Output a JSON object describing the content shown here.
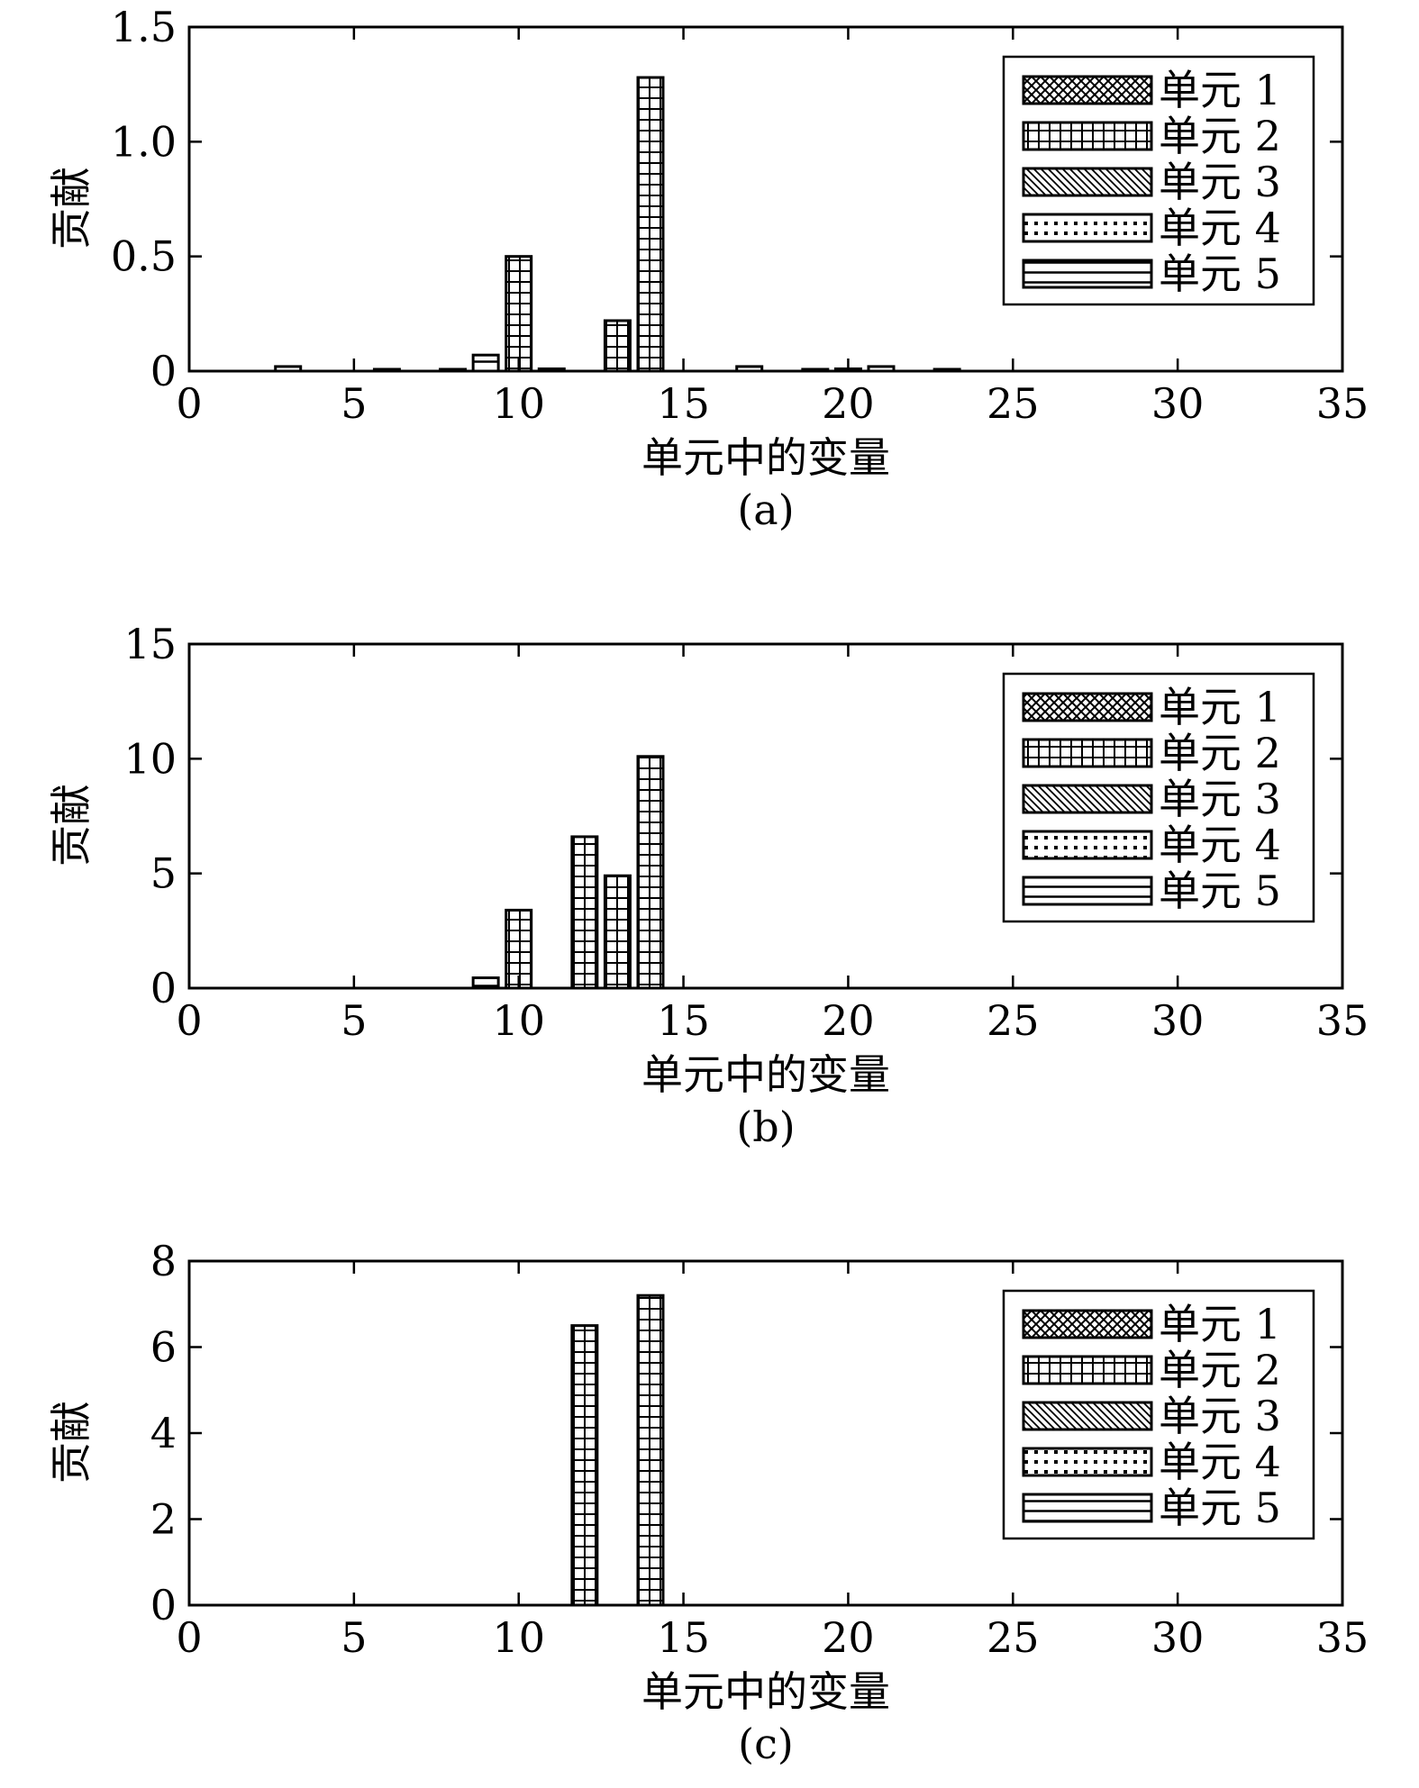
{
  "chart_data": [
    {
      "type": "bar",
      "caption": "(a)",
      "xlabel": "单元中的变量",
      "ylabel": "贡献",
      "xlim": [
        0,
        35
      ],
      "ylim": [
        0,
        1.5
      ],
      "xticks": [
        "0",
        "5",
        "10",
        "15",
        "20",
        "25",
        "30",
        "35"
      ],
      "yticks": [
        "0",
        "0.5",
        "1.0",
        "1.5"
      ],
      "grid": false,
      "legend_position": "top-right",
      "series": [
        {
          "name": "单元 1",
          "pattern": "crosshatch",
          "points": []
        },
        {
          "name": "单元 2",
          "pattern": "grid",
          "points": [
            {
              "x": 10,
              "y": 0.5
            },
            {
              "x": 13,
              "y": 0.22
            },
            {
              "x": 14,
              "y": 1.28
            }
          ]
        },
        {
          "name": "单元 3",
          "pattern": "diagonal",
          "points": []
        },
        {
          "name": "单元 4",
          "pattern": "dots",
          "points": []
        },
        {
          "name": "单元 5",
          "pattern": "hlines",
          "points": [
            {
              "x": 3,
              "y": 0.02
            },
            {
              "x": 6,
              "y": 0.008
            },
            {
              "x": 8,
              "y": 0.008
            },
            {
              "x": 9,
              "y": 0.07
            },
            {
              "x": 11,
              "y": 0.01
            },
            {
              "x": 17,
              "y": 0.02
            },
            {
              "x": 19,
              "y": 0.008
            },
            {
              "x": 20,
              "y": 0.01
            },
            {
              "x": 21,
              "y": 0.02
            },
            {
              "x": 23,
              "y": 0.008
            }
          ]
        }
      ]
    },
    {
      "type": "bar",
      "caption": "(b)",
      "xlabel": "单元中的变量",
      "ylabel": "贡献",
      "xlim": [
        0,
        35
      ],
      "ylim": [
        0,
        15
      ],
      "xticks": [
        "0",
        "5",
        "10",
        "15",
        "20",
        "25",
        "30",
        "35"
      ],
      "yticks": [
        "0",
        "5",
        "10",
        "15"
      ],
      "grid": false,
      "legend_position": "top-right",
      "series": [
        {
          "name": "单元 1",
          "pattern": "crosshatch",
          "points": []
        },
        {
          "name": "单元 2",
          "pattern": "grid",
          "points": [
            {
              "x": 10,
              "y": 3.4
            },
            {
              "x": 12,
              "y": 6.6
            },
            {
              "x": 13,
              "y": 4.9
            },
            {
              "x": 14,
              "y": 10.1
            }
          ]
        },
        {
          "name": "单元 3",
          "pattern": "diagonal",
          "points": []
        },
        {
          "name": "单元 4",
          "pattern": "dots",
          "points": []
        },
        {
          "name": "单元 5",
          "pattern": "hlines",
          "points": [
            {
              "x": 9,
              "y": 0.45
            }
          ]
        }
      ]
    },
    {
      "type": "bar",
      "caption": "(c)",
      "xlabel": "单元中的变量",
      "ylabel": "贡献",
      "xlim": [
        0,
        35
      ],
      "ylim": [
        0,
        8
      ],
      "xticks": [
        "0",
        "5",
        "10",
        "15",
        "20",
        "25",
        "30",
        "35"
      ],
      "yticks": [
        "0",
        "2",
        "4",
        "6",
        "8"
      ],
      "grid": false,
      "legend_position": "top-right",
      "series": [
        {
          "name": "单元 1",
          "pattern": "crosshatch",
          "points": []
        },
        {
          "name": "单元 2",
          "pattern": "grid",
          "points": [
            {
              "x": 12,
              "y": 6.5
            },
            {
              "x": 14,
              "y": 7.2
            }
          ]
        },
        {
          "name": "单元 3",
          "pattern": "diagonal",
          "points": []
        },
        {
          "name": "单元 4",
          "pattern": "dots",
          "points": []
        },
        {
          "name": "单元 5",
          "pattern": "hlines",
          "points": []
        }
      ]
    }
  ]
}
